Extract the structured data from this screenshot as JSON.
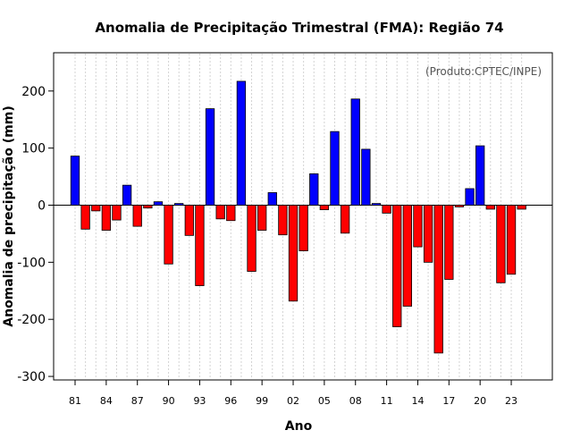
{
  "chart_data": {
    "type": "bar",
    "title": "Anomalia de Precipitação Trimestral (FMA): Região 74",
    "annotation": "(Produto:CPTEC/INPE)",
    "xlabel": "Ano",
    "ylabel": "Anomalia de precipitação (mm)",
    "ylim": [
      -310,
      265
    ],
    "yticks": [
      -300,
      -200,
      -100,
      0,
      100,
      200
    ],
    "grid": "vertical dotted",
    "positive_color": "#0000ff",
    "negative_color": "#ff0000",
    "categories": [
      "81",
      "82",
      "83",
      "84",
      "85",
      "86",
      "87",
      "88",
      "89",
      "90",
      "91",
      "92",
      "93",
      "94",
      "95",
      "96",
      "97",
      "98",
      "99",
      "00",
      "01",
      "02",
      "03",
      "04",
      "05",
      "06",
      "07",
      "08",
      "09",
      "10",
      "11",
      "12",
      "13",
      "14",
      "15",
      "16",
      "17",
      "18",
      "19",
      "20",
      "21",
      "22",
      "23",
      "24"
    ],
    "tick_labels": [
      "81",
      "84",
      "87",
      "90",
      "93",
      "96",
      "99",
      "02",
      "05",
      "08",
      "11",
      "14",
      "17",
      "20",
      "23"
    ],
    "values": [
      86,
      -42,
      -10,
      -44,
      -26,
      35,
      -37,
      -5,
      6,
      -103,
      3,
      -53,
      -141,
      169,
      -24,
      -27,
      217,
      -116,
      -44,
      22,
      -52,
      -168,
      -80,
      55,
      -8,
      129,
      -49,
      186,
      98,
      3,
      -14,
      -213,
      -177,
      -73,
      -100,
      -259,
      -130,
      -3,
      29,
      104,
      -7,
      -136,
      -121,
      -7
    ]
  }
}
